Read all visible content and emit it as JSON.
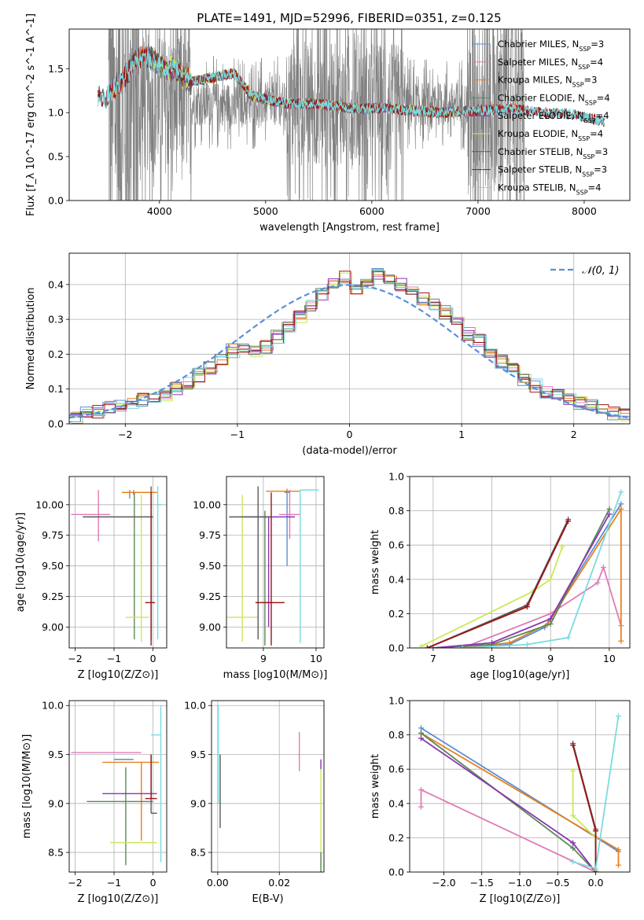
{
  "figure": {
    "title": "PLATE=1491, MJD=52996, FIBERID=0351, z=0.125"
  },
  "colors": {
    "Chabrier MILES": "#5a8fd8",
    "Salpeter MILES": "#e07bb8",
    "Kroupa MILES": "#e8801c",
    "Chabrier ELODIE": "#5a8a5a",
    "Salpeter ELODIE": "#8b35b0",
    "Kroupa ELODIE": "#cce85a",
    "Chabrier STELIB": "#5a5a5a",
    "Salpeter STELIB": "#9b1515",
    "Kroupa STELIB": "#7adbe0"
  },
  "chart_data": [
    {
      "id": "spectrum",
      "type": "line",
      "title": "PLATE=1491, MJD=52996, FIBERID=0351, z=0.125",
      "xlabel": "wavelength [Angstrom, rest frame]",
      "ylabel": "Flux [f_λ 10^-17 erg cm^-2 s^-1 A^-1]",
      "xlim": [
        3150,
        8430
      ],
      "ylim": [
        0,
        1.95
      ],
      "xticks": [
        4000,
        5000,
        6000,
        7000,
        8000
      ],
      "yticks": [
        0.0,
        0.5,
        1.0,
        1.5
      ],
      "grid": false,
      "legend_position": "top-right",
      "legend": [
        {
          "name": "Chabrier MILES",
          "label": "Chabrier MILES, N",
          "sub": "SSP",
          "suffix": "=3"
        },
        {
          "name": "Salpeter MILES",
          "label": "Salpeter MILES, N",
          "sub": "SSP",
          "suffix": "=4"
        },
        {
          "name": "Kroupa MILES",
          "label": "Kroupa MILES, N",
          "sub": "SSP",
          "suffix": "=3"
        },
        {
          "name": "Chabrier ELODIE",
          "label": "Chabrier ELODIE, N",
          "sub": "SSP",
          "suffix": "=4"
        },
        {
          "name": "Salpeter ELODIE",
          "label": "Salpeter ELODIE, N",
          "sub": "SSP",
          "suffix": "=4"
        },
        {
          "name": "Kroupa ELODIE",
          "label": "Kroupa ELODIE, N",
          "sub": "SSP",
          "suffix": "=4"
        },
        {
          "name": "Chabrier STELIB",
          "label": "Chabrier STELIB, N",
          "sub": "SSP",
          "suffix": "=3"
        },
        {
          "name": "Salpeter STELIB",
          "label": "Salpeter STELIB, N",
          "sub": "SSP",
          "suffix": "=3"
        },
        {
          "name": "Kroupa STELIB",
          "label": "Kroupa STELIB, N",
          "sub": "SSP",
          "suffix": "=4"
        }
      ],
      "data_series": {
        "name": "observed",
        "x_range": [
          3520,
          7440
        ],
        "y_median": 1.1
      },
      "model_shape": [
        [
          3420,
          1.2
        ],
        [
          3500,
          1.15
        ],
        [
          3560,
          1.25
        ],
        [
          3650,
          1.35
        ],
        [
          3750,
          1.55
        ],
        [
          3850,
          1.65
        ],
        [
          3950,
          1.6
        ],
        [
          4050,
          1.5
        ],
        [
          4150,
          1.5
        ],
        [
          4300,
          1.35
        ],
        [
          4500,
          1.4
        ],
        [
          4700,
          1.45
        ],
        [
          4860,
          1.2
        ],
        [
          5000,
          1.15
        ],
        [
          5200,
          1.1
        ],
        [
          5500,
          1.1
        ],
        [
          5800,
          1.05
        ],
        [
          6100,
          1.05
        ],
        [
          6400,
          1.02
        ],
        [
          6700,
          1.0
        ],
        [
          7000,
          1.02
        ],
        [
          7300,
          1.05
        ],
        [
          7600,
          1.0
        ],
        [
          7900,
          0.98
        ],
        [
          8180,
          0.9
        ]
      ],
      "model_ranges": {
        "Chabrier MILES": [
          3540,
          7410
        ],
        "Salpeter MILES": [
          3540,
          7410
        ],
        "Kroupa MILES": [
          3540,
          7410
        ],
        "Chabrier ELODIE": [
          3900,
          6800
        ],
        "Salpeter ELODIE": [
          3900,
          6800
        ],
        "Kroupa ELODIE": [
          3900,
          6800
        ],
        "Chabrier STELIB": [
          3420,
          8190
        ],
        "Salpeter STELIB": [
          3420,
          8190
        ],
        "Kroupa STELIB": [
          3420,
          8190
        ]
      }
    },
    {
      "id": "residuals",
      "type": "line",
      "xlabel": "(data-model)/error",
      "ylabel": "Normed distribution",
      "xlim": [
        -2.5,
        2.5
      ],
      "ylim": [
        0,
        0.49
      ],
      "xticks": [
        -2,
        -1,
        0,
        1,
        2
      ],
      "yticks": [
        0.0,
        0.1,
        0.2,
        0.3,
        0.4
      ],
      "grid": true,
      "legend_position": "top-right",
      "legend": [
        {
          "name": "gaussian",
          "label": "𝒩(0, 1)",
          "style": "dashed"
        }
      ],
      "bin_edges_start": -2.5,
      "bin_width": 0.1,
      "hist_base": [
        0.02,
        0.03,
        0.035,
        0.045,
        0.05,
        0.06,
        0.07,
        0.075,
        0.085,
        0.1,
        0.12,
        0.14,
        0.16,
        0.18,
        0.21,
        0.22,
        0.21,
        0.22,
        0.25,
        0.28,
        0.31,
        0.34,
        0.37,
        0.41,
        0.42,
        0.38,
        0.4,
        0.43,
        0.42,
        0.4,
        0.38,
        0.36,
        0.34,
        0.32,
        0.29,
        0.26,
        0.24,
        0.21,
        0.18,
        0.16,
        0.13,
        0.11,
        0.09,
        0.08,
        0.07,
        0.06,
        0.05,
        0.04,
        0.03,
        0.025
      ]
    },
    {
      "id": "age-vs-Z",
      "type": "scatter",
      "xlabel": "Z [log10(Z/Z⊙)]",
      "ylabel": "age  [log10(age/yr)]",
      "xlim": [
        -2.15,
        0.35
      ],
      "ylim": [
        8.83,
        10.23
      ],
      "xticks": [
        -2,
        -1,
        0
      ],
      "yticks": [
        9.0,
        9.25,
        9.5,
        9.75,
        10.0
      ],
      "grid": true,
      "points": [
        {
          "model": "Chabrier MILES",
          "x": -0.6,
          "y": 10.1,
          "xerr": [
            0.2,
            0.05
          ],
          "yerr": [
            0.05,
            0.02
          ]
        },
        {
          "model": "Salpeter MILES",
          "x": -1.4,
          "y": 9.92,
          "xerr": [
            0.7,
            0.3
          ],
          "yerr": [
            0.22,
            0.2
          ]
        },
        {
          "model": "Kroupa MILES",
          "x": -0.5,
          "y": 10.1,
          "xerr": [
            0.3,
            0.6
          ],
          "yerr": [
            0.02,
            0.02
          ]
        },
        {
          "model": "Chabrier ELODIE",
          "x": -0.48,
          "y": 9.9,
          "xerr": [
            0.0,
            0.0
          ],
          "yerr": [
            1.0,
            0.2
          ]
        },
        {
          "model": "Salpeter ELODIE",
          "x": -0.8,
          "y": 9.9,
          "xerr": [
            0.0,
            0.0
          ],
          "yerr": [
            0.0,
            0.0
          ]
        },
        {
          "model": "Kroupa ELODIE",
          "x": -0.3,
          "y": 9.08,
          "xerr": [
            0.4,
            0.2
          ],
          "yerr": [
            0.2,
            1.0
          ]
        },
        {
          "model": "Chabrier STELIB",
          "x": -0.05,
          "y": 9.9,
          "xerr": [
            1.75,
            0.05
          ],
          "yerr": [
            1.0,
            0.25
          ]
        },
        {
          "model": "Salpeter STELIB",
          "x": -0.05,
          "y": 9.2,
          "xerr": [
            0.15,
            0.1
          ],
          "yerr": [
            0.35,
            0.9
          ]
        },
        {
          "model": "Kroupa STELIB",
          "x": 0.12,
          "y": 10.0,
          "xerr": [
            0.0,
            0.1
          ],
          "yerr": [
            1.1,
            0.15
          ]
        }
      ]
    },
    {
      "id": "age-vs-mass",
      "type": "scatter",
      "xlabel": "mass [log10(M/M⊙)]",
      "ylabel": "",
      "xlim": [
        8.3,
        10.15
      ],
      "ylim": [
        8.83,
        10.23
      ],
      "xticks": [
        8,
        9,
        10
      ],
      "yticks": [
        9.0,
        9.25,
        9.5,
        9.75,
        10.0
      ],
      "grid": true,
      "points": [
        {
          "model": "Chabrier MILES",
          "x": 9.45,
          "y": 10.1,
          "xerr": [
            0.05,
            0.05
          ],
          "yerr": [
            0.6,
            0.02
          ]
        },
        {
          "model": "Salpeter MILES",
          "x": 9.5,
          "y": 9.92,
          "xerr": [
            0.2,
            0.2
          ],
          "yerr": [
            0.2,
            0.2
          ]
        },
        {
          "model": "Kroupa MILES",
          "x": 9.45,
          "y": 10.11,
          "xerr": [
            0.4,
            0.25
          ],
          "yerr": [
            0.02,
            0.02
          ]
        },
        {
          "model": "Chabrier ELODIE",
          "x": 9.03,
          "y": 9.85,
          "xerr": [
            0.0,
            0.0
          ],
          "yerr": [
            1.0,
            0.1
          ]
        },
        {
          "model": "Salpeter ELODIE",
          "x": 9.1,
          "y": 9.9,
          "xerr": [
            0.5,
            0.5
          ],
          "yerr": [
            0.9,
            0.0
          ]
        },
        {
          "model": "Kroupa ELODIE",
          "x": 8.6,
          "y": 9.08,
          "xerr": [
            0.3,
            0.3
          ],
          "yerr": [
            0.2,
            1.0
          ]
        },
        {
          "model": "Chabrier STELIB",
          "x": 8.9,
          "y": 9.9,
          "xerr": [
            0.55,
            0.25
          ],
          "yerr": [
            1.0,
            0.25
          ]
        },
        {
          "model": "Salpeter STELIB",
          "x": 9.15,
          "y": 9.2,
          "xerr": [
            0.3,
            0.25
          ],
          "yerr": [
            0.35,
            0.9
          ]
        },
        {
          "model": "Kroupa STELIB",
          "x": 9.7,
          "y": 10.12,
          "xerr": [
            0.0,
            0.35
          ],
          "yerr": [
            1.25,
            0.0
          ]
        }
      ]
    },
    {
      "id": "massweight-vs-age",
      "type": "line",
      "xlabel": "age  [log10(age/yr)]",
      "ylabel": "mass weight",
      "xlim": [
        6.6,
        10.35
      ],
      "ylim": [
        0.0,
        1.0
      ],
      "xticks": [
        7,
        8,
        9,
        10
      ],
      "yticks": [
        0.0,
        0.2,
        0.4,
        0.6,
        0.8,
        1.0
      ],
      "grid": true,
      "series": [
        {
          "name": "Chabrier MILES",
          "x": [
            7.5,
            8.3,
            8.9,
            10.2
          ],
          "y": [
            0.0,
            0.02,
            0.12,
            0.84
          ]
        },
        {
          "name": "Salpeter MILES",
          "x": [
            7.5,
            9.0,
            9.8,
            9.9,
            10.2
          ],
          "y": [
            0.0,
            0.2,
            0.38,
            0.47,
            0.13
          ]
        },
        {
          "name": "Kroupa MILES",
          "x": [
            7.5,
            8.3,
            8.95,
            10.2,
            10.2
          ],
          "y": [
            0.0,
            0.03,
            0.14,
            0.81,
            0.04
          ]
        },
        {
          "name": "Chabrier ELODIE",
          "x": [
            7.0,
            8.0,
            9.0,
            10.0
          ],
          "y": [
            0.0,
            0.02,
            0.14,
            0.81
          ]
        },
        {
          "name": "Salpeter ELODIE",
          "x": [
            7.0,
            8.0,
            9.0,
            10.0
          ],
          "y": [
            0.0,
            0.03,
            0.17,
            0.78
          ]
        },
        {
          "name": "Kroupa ELODIE",
          "x": [
            6.8,
            8.7,
            9.0,
            9.2
          ],
          "y": [
            0.01,
            0.33,
            0.4,
            0.59
          ]
        },
        {
          "name": "Chabrier STELIB",
          "x": [
            6.9,
            8.6,
            9.3
          ],
          "y": [
            0.0,
            0.25,
            0.75
          ]
        },
        {
          "name": "Salpeter STELIB",
          "x": [
            6.9,
            8.6,
            9.3
          ],
          "y": [
            0.0,
            0.24,
            0.74
          ]
        },
        {
          "name": "Kroupa STELIB",
          "x": [
            7.5,
            8.6,
            9.3,
            10.2
          ],
          "y": [
            0.0,
            0.02,
            0.06,
            0.91
          ]
        }
      ]
    },
    {
      "id": "mass-vs-Z",
      "type": "scatter",
      "xlabel": "Z [log10(Z/Z⊙)]",
      "ylabel": "mass [log10(M/M⊙)]",
      "xlim": [
        -2.15,
        0.35
      ],
      "ylim": [
        8.3,
        10.05
      ],
      "xticks": [
        -2,
        -1,
        0
      ],
      "yticks": [
        8.5,
        9.0,
        9.5,
        10.0
      ],
      "grid": true,
      "points": [
        {
          "model": "Chabrier MILES",
          "x": -0.5,
          "y": 9.45,
          "xerr": [
            0.5,
            0.0
          ],
          "yerr": [
            0.0,
            0.0
          ]
        },
        {
          "model": "Salpeter MILES",
          "x": -1.2,
          "y": 9.52,
          "xerr": [
            0.9,
            0.9
          ],
          "yerr": [
            0.0,
            0.0
          ]
        },
        {
          "model": "Kroupa MILES",
          "x": -0.3,
          "y": 9.42,
          "xerr": [
            1.0,
            0.45
          ],
          "yerr": [
            0.8,
            0.0
          ]
        },
        {
          "model": "Chabrier ELODIE",
          "x": -0.7,
          "y": 9.02,
          "xerr": [
            1.0,
            0.7
          ],
          "yerr": [
            0.65,
            0.35
          ]
        },
        {
          "model": "Salpeter ELODIE",
          "x": -0.6,
          "y": 9.1,
          "xerr": [
            0.7,
            0.7
          ],
          "yerr": [
            0.0,
            0.0
          ]
        },
        {
          "model": "Kroupa ELODIE",
          "x": -0.5,
          "y": 8.6,
          "xerr": [
            0.6,
            0.6
          ],
          "yerr": [
            0.0,
            0.0
          ]
        },
        {
          "model": "Chabrier STELIB",
          "x": -0.05,
          "y": 8.9,
          "xerr": [
            0.0,
            0.15
          ],
          "yerr": [
            0.0,
            0.6
          ]
        },
        {
          "model": "Salpeter STELIB",
          "x": -0.05,
          "y": 9.05,
          "xerr": [
            0.15,
            0.15
          ],
          "yerr": [
            0.0,
            0.45
          ]
        },
        {
          "model": "Kroupa STELIB",
          "x": 0.2,
          "y": 9.7,
          "xerr": [
            0.25,
            0.0
          ],
          "yerr": [
            1.3,
            0.3
          ]
        }
      ]
    },
    {
      "id": "mass-vs-ebv",
      "type": "scatter",
      "xlabel": "E(B-V)",
      "ylabel": "",
      "xlim": [
        -0.002,
        0.0345
      ],
      "ylim": [
        8.3,
        10.05
      ],
      "xticks": [
        0.0,
        0.02
      ],
      "yticks": [
        8.5,
        9.0,
        9.5,
        10.0
      ],
      "grid": true,
      "points": [
        {
          "model": "Kroupa STELIB",
          "x": 0.0002,
          "y": 9.5,
          "yerr": [
            0.5,
            0.5
          ]
        },
        {
          "model": "Chabrier STELIB",
          "x": 0.0008,
          "y": 9.1,
          "yerr": [
            0.35,
            0.4
          ]
        },
        {
          "model": "Salpeter MILES",
          "x": 0.0265,
          "y": 9.53,
          "yerr": [
            0.2,
            0.2
          ]
        },
        {
          "model": "Kroupa ELODIE",
          "x": 0.0335,
          "y": 8.85,
          "yerr": [
            0.5,
            0.5
          ]
        },
        {
          "model": "Salpeter ELODIE",
          "x": 0.0335,
          "y": 9.4,
          "yerr": [
            0.05,
            0.05
          ]
        },
        {
          "model": "Chabrier ELODIE",
          "x": 0.0335,
          "y": 8.4,
          "yerr": [
            0.1,
            0.1
          ]
        }
      ]
    },
    {
      "id": "massweight-vs-Z",
      "type": "line",
      "xlabel": "Z [log10(Z/Z⊙)]",
      "ylabel": "mass weight",
      "xlim": [
        -2.45,
        0.45
      ],
      "ylim": [
        0.0,
        1.0
      ],
      "xticks": [
        -2.0,
        -1.5,
        -1.0,
        -0.5,
        0.0
      ],
      "yticks": [
        0.0,
        0.2,
        0.4,
        0.6,
        0.8,
        1.0
      ],
      "grid": true,
      "series": [
        {
          "name": "Chabrier MILES",
          "x": [
            -2.3,
            0.3
          ],
          "y": [
            0.84,
            0.12
          ]
        },
        {
          "name": "Salpeter MILES",
          "x": [
            -2.3,
            -2.3,
            -0.0
          ],
          "y": [
            0.38,
            0.48,
            0.0
          ]
        },
        {
          "name": "Kroupa MILES",
          "x": [
            -2.3,
            0.3,
            0.3
          ],
          "y": [
            0.81,
            0.13,
            0.04
          ]
        },
        {
          "name": "Chabrier ELODIE",
          "x": [
            -2.3,
            -0.3,
            0.0
          ],
          "y": [
            0.81,
            0.14,
            0.0
          ]
        },
        {
          "name": "Salpeter ELODIE",
          "x": [
            -2.3,
            -0.3,
            0.0
          ],
          "y": [
            0.78,
            0.17,
            0.0
          ]
        },
        {
          "name": "Kroupa ELODIE",
          "x": [
            -0.3,
            -0.3,
            0.0,
            0.0
          ],
          "y": [
            0.59,
            0.33,
            0.2,
            0.01
          ]
        },
        {
          "name": "Chabrier STELIB",
          "x": [
            -0.3,
            0.0,
            0.0
          ],
          "y": [
            0.75,
            0.25,
            0.0
          ]
        },
        {
          "name": "Salpeter STELIB",
          "x": [
            -0.3,
            0.0,
            0.0
          ],
          "y": [
            0.74,
            0.24,
            0.0
          ]
        },
        {
          "name": "Kroupa STELIB",
          "x": [
            -0.3,
            0.0,
            0.3
          ],
          "y": [
            0.06,
            0.02,
            0.91
          ]
        }
      ]
    }
  ]
}
